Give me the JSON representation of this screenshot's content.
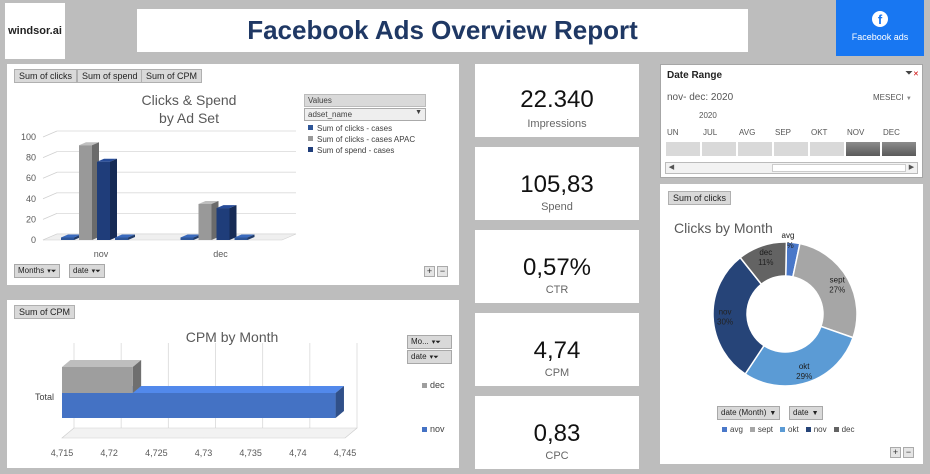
{
  "header": {
    "logo_text": "windsor.ai",
    "title": "Facebook Ads Overview Report",
    "fb_button_label": "Facebook ads",
    "fb_color": "#1877f2",
    "title_color": "#1f3864"
  },
  "clicks_spend": {
    "buttons": [
      "Sum of clicks",
      "Sum of spend",
      "Sum of CPM"
    ],
    "values_header": "Values",
    "field_select": "adset_name",
    "legend": [
      "Sum of clicks - cases",
      "Sum of clicks - cases APAC",
      "Sum of spend - cases"
    ],
    "filters": [
      "Months",
      "date"
    ]
  },
  "cpm": {
    "button": "Sum of CPM",
    "filters": [
      "Mo...",
      "date"
    ],
    "legend": [
      "dec",
      "nov"
    ]
  },
  "kpis": [
    {
      "value": "22.340",
      "label": "Impressions"
    },
    {
      "value": "105,83",
      "label": "Spend"
    },
    {
      "value": "0,57%",
      "label": "CTR"
    },
    {
      "value": "4,74",
      "label": "CPM"
    },
    {
      "value": "0,83",
      "label": "CPC"
    }
  ],
  "date_range": {
    "title": "Date Range",
    "selection": "nov- dec: 2020",
    "unit": "MESECI",
    "year": "2020",
    "months": [
      "UN",
      "JUL",
      "AVG",
      "SEP",
      "OKT",
      "NOV",
      "DEC"
    ],
    "selected_months": [
      "NOV",
      "DEC"
    ]
  },
  "donut": {
    "button": "Sum of clicks",
    "filters": [
      "date (Month)",
      "date"
    ]
  },
  "chart_data": [
    {
      "type": "bar",
      "title": "Clicks & Spend by Ad Set",
      "title_lines": [
        "Clicks & Spend",
        "by Ad Set"
      ],
      "categories": [
        "nov",
        "dec"
      ],
      "series": [
        {
          "name": "Sum of clicks - cases",
          "values": [
            0,
            0
          ],
          "color": "#2e5597"
        },
        {
          "name": "Sum of clicks - cases APAC",
          "values": [
            92,
            35
          ],
          "color": "#999999"
        },
        {
          "name": "Sum of spend - cases",
          "values": [
            76,
            31
          ],
          "color": "#1f3d7a"
        },
        {
          "name": "",
          "values": [
            0,
            0
          ],
          "color": "#2e5597"
        }
      ],
      "yticks": [
        0,
        20,
        40,
        60,
        80,
        100
      ],
      "ylim": [
        0,
        100
      ]
    },
    {
      "type": "bar",
      "orientation": "horizontal",
      "title": "CPM by Month",
      "categories": [
        "Total"
      ],
      "series": [
        {
          "name": "dec",
          "values": [
            4.7225
          ],
          "color": "#9e9e9e"
        },
        {
          "name": "nov",
          "values": [
            4.744
          ],
          "color": "#4472c4"
        }
      ],
      "xticks": [
        "4,715",
        "4,72",
        "4,725",
        "4,73",
        "4,735",
        "4,74",
        "4,745"
      ],
      "xlim": [
        4.715,
        4.745
      ]
    },
    {
      "type": "pie",
      "title": "Clicks by Month",
      "donut": true,
      "slices": [
        {
          "label": "avg",
          "value": 3,
          "pct": "3%",
          "color": "#4a78c9"
        },
        {
          "label": "sept",
          "value": 27,
          "pct": "27%",
          "color": "#a6a6a6"
        },
        {
          "label": "okt",
          "value": 29,
          "pct": "29%",
          "color": "#5b9bd5"
        },
        {
          "label": "nov",
          "value": 30,
          "pct": "30%",
          "color": "#264478"
        },
        {
          "label": "dec",
          "value": 11,
          "pct": "11%",
          "color": "#636363"
        }
      ],
      "legend": [
        "avg",
        "sept",
        "okt",
        "nov",
        "dec"
      ]
    }
  ]
}
